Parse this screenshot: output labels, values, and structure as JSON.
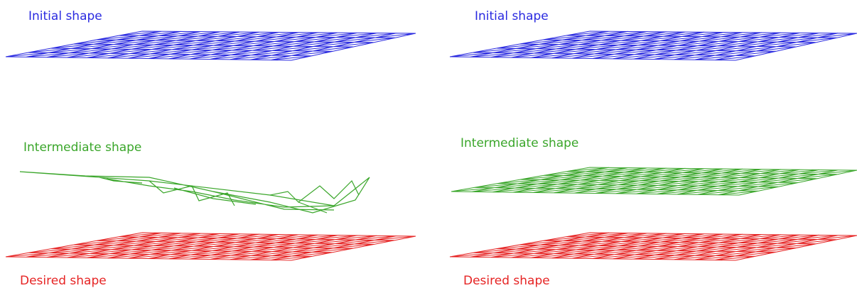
{
  "panels": [
    {
      "initial": "Initial shape",
      "intermediate": "Intermediate shape",
      "desired": "Desired shape"
    },
    {
      "initial": "Initial shape",
      "intermediate": "Intermediate shape",
      "desired": "Desired shape"
    }
  ]
}
